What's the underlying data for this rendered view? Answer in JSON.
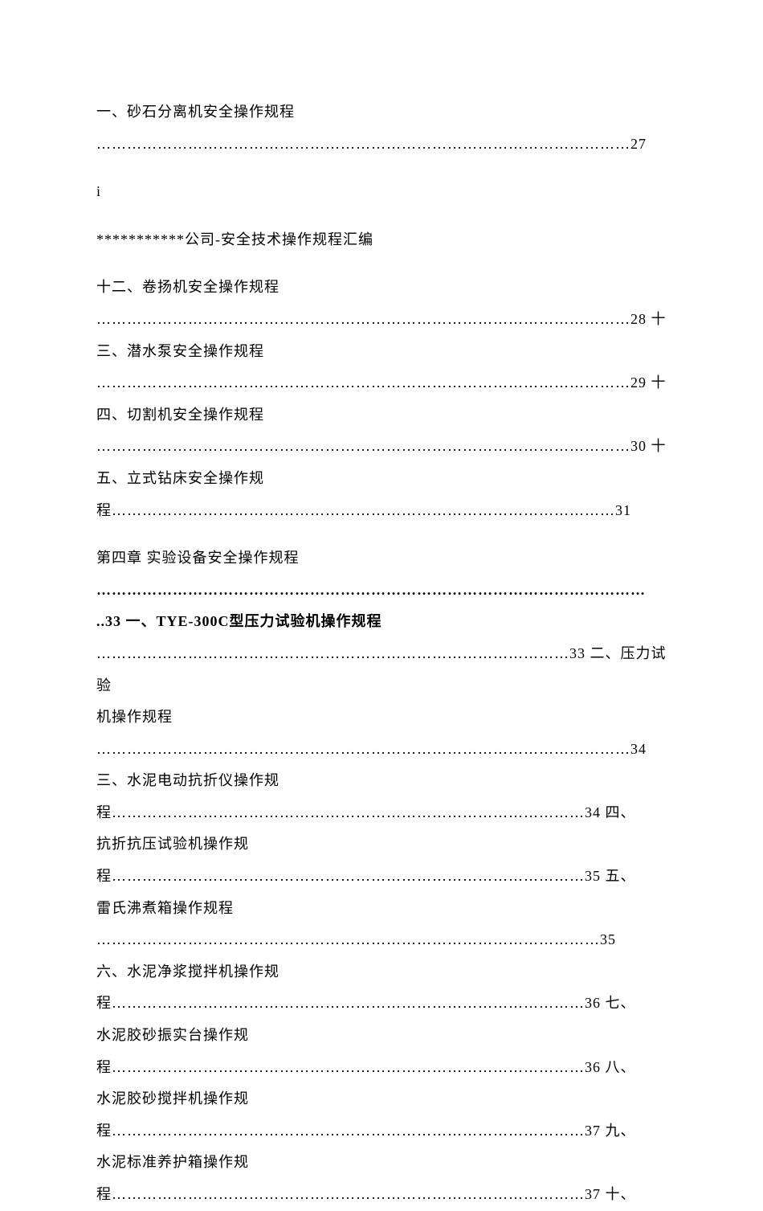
{
  "lines": [
    {
      "text": "一、砂石分离机安全操作规程",
      "bold": false
    },
    {
      "text": "……………………………………………………………………………………………27",
      "bold": false
    },
    {
      "text": "",
      "spacer": true
    },
    {
      "text": "i",
      "bold": false
    },
    {
      "text": "",
      "spacer": true
    },
    {
      "text": "***********公司-安全技术操作规程汇编",
      "bold": false
    },
    {
      "text": "",
      "spacer": true
    },
    {
      "text": "十二、卷扬机安全操作规程",
      "bold": false
    },
    {
      "text": "……………………………………………………………………………………………28 十",
      "bold": false
    },
    {
      "text": "三、潜水泵安全操作规程",
      "bold": false
    },
    {
      "text": "……………………………………………………………………………………………29 十",
      "bold": false
    },
    {
      "text": "四、切割机安全操作规程",
      "bold": false
    },
    {
      "text": "……………………………………………………………………………………………30 十",
      "bold": false
    },
    {
      "text": "五、立式钻床安全操作规",
      "bold": false
    },
    {
      "text": "程………………………………………………………………………………………31",
      "bold": false
    },
    {
      "text": "",
      "spacer": true
    },
    {
      "text": "第四章 实验设备安全操作规程",
      "bold": false
    },
    {
      "text": "………………………………………………………………………………………………",
      "bold": true
    },
    {
      "text": "..33 一、TYE-300C型压力试验机操作规程",
      "bold": true
    },
    {
      "text": "…………………………………………………………………………………33 二、压力试验",
      "bold": false
    },
    {
      "text": "机操作规程",
      "bold": false
    },
    {
      "text": "……………………………………………………………………………………………34",
      "bold": false
    },
    {
      "text": "三、水泥电动抗折仪操作规",
      "bold": false
    },
    {
      "text": "程…………………………………………………………………………………34 四、",
      "bold": false
    },
    {
      "text": "抗折抗压试验机操作规",
      "bold": false
    },
    {
      "text": "程…………………………………………………………………………………35 五、",
      "bold": false
    },
    {
      "text": "雷氏沸煮箱操作规程",
      "bold": false
    },
    {
      "text": "………………………………………………………………………………………35",
      "bold": false
    },
    {
      "text": "六、水泥净浆搅拌机操作规",
      "bold": false
    },
    {
      "text": "程…………………………………………………………………………………36 七、",
      "bold": false
    },
    {
      "text": "水泥胶砂振实台操作规",
      "bold": false
    },
    {
      "text": "程…………………………………………………………………………………36 八、",
      "bold": false
    },
    {
      "text": "水泥胶砂搅拌机操作规",
      "bold": false
    },
    {
      "text": "程…………………………………………………………………………………37 九、",
      "bold": false
    },
    {
      "text": "水泥标准养护箱操作规",
      "bold": false
    },
    {
      "text": "程…………………………………………………………………………………37 十、",
      "bold": false
    }
  ]
}
